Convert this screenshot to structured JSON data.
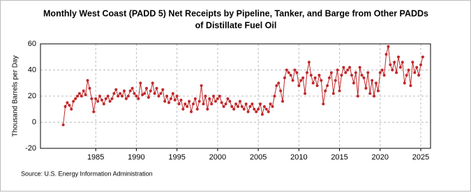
{
  "chart_data": {
    "type": "line",
    "title": [
      "Monthly West Coast (PADD 5) Net Receipts by Pipeline, Tanker, and Barge from Other PADDs",
      "of Distillate Fuel Oil"
    ],
    "y_label": "Thousand Barrels per Day",
    "source": "Source: U.S. Energy Information Administration",
    "xlim": [
      1978.2,
      2026.2
    ],
    "xticks": [
      1985,
      1990,
      1995,
      2000,
      2005,
      2010,
      2015,
      2020,
      2025
    ],
    "ylim": [
      -20,
      60
    ],
    "yticks": [
      -20,
      0,
      20,
      40,
      60
    ],
    "grid": true,
    "x": [
      1981,
      1981.25,
      1981.5,
      1981.75,
      1982,
      1982.25,
      1982.5,
      1982.75,
      1983,
      1983.25,
      1983.5,
      1983.75,
      1984,
      1984.25,
      1984.5,
      1984.75,
      1985,
      1985.25,
      1985.5,
      1985.75,
      1986,
      1986.25,
      1986.5,
      1986.75,
      1987,
      1987.25,
      1987.5,
      1987.75,
      1988,
      1988.25,
      1988.5,
      1988.75,
      1989,
      1989.25,
      1989.5,
      1989.75,
      1990,
      1990.25,
      1990.5,
      1990.75,
      1991,
      1991.25,
      1991.5,
      1991.75,
      1992,
      1992.25,
      1992.5,
      1992.75,
      1993,
      1993.25,
      1993.5,
      1993.75,
      1994,
      1994.25,
      1994.5,
      1994.75,
      1995,
      1995.25,
      1995.5,
      1995.75,
      1996,
      1996.25,
      1996.5,
      1996.75,
      1997,
      1997.25,
      1997.5,
      1997.75,
      1998,
      1998.25,
      1998.5,
      1998.75,
      1999,
      1999.25,
      1999.5,
      1999.75,
      2000,
      2000.25,
      2000.5,
      2000.75,
      2001,
      2001.25,
      2001.5,
      2001.75,
      2002,
      2002.25,
      2002.5,
      2002.75,
      2003,
      2003.25,
      2003.5,
      2003.75,
      2004,
      2004.25,
      2004.5,
      2004.75,
      2005,
      2005.25,
      2005.5,
      2005.75,
      2006,
      2006.25,
      2006.5,
      2006.75,
      2007,
      2007.25,
      2007.5,
      2007.75,
      2008,
      2008.25,
      2008.5,
      2008.75,
      2009,
      2009.25,
      2009.5,
      2009.75,
      2010,
      2010.25,
      2010.5,
      2010.75,
      2011,
      2011.25,
      2011.5,
      2011.75,
      2012,
      2012.25,
      2012.5,
      2012.75,
      2013,
      2013.25,
      2013.5,
      2013.75,
      2014,
      2014.25,
      2014.5,
      2014.75,
      2015,
      2015.25,
      2015.5,
      2015.75,
      2016,
      2016.25,
      2016.5,
      2016.75,
      2017,
      2017.25,
      2017.5,
      2017.75,
      2018,
      2018.25,
      2018.5,
      2018.75,
      2019,
      2019.25,
      2019.5,
      2019.75,
      2020,
      2020.25,
      2020.5,
      2020.75,
      2021,
      2021.25,
      2021.5,
      2021.75,
      2022,
      2022.25,
      2022.5,
      2022.75,
      2023,
      2023.25,
      2023.5,
      2023.75,
      2024,
      2024.25,
      2024.5,
      2024.75,
      2025,
      2025.25
    ],
    "series": [
      {
        "color": "#c0282a",
        "values": [
          -2,
          12,
          15,
          13,
          10,
          16,
          18,
          20,
          22,
          20,
          24,
          21,
          32,
          26,
          18,
          8,
          18,
          16,
          20,
          17,
          14,
          18,
          20,
          16,
          18,
          22,
          25,
          20,
          22,
          20,
          24,
          18,
          20,
          24,
          26,
          22,
          20,
          18,
          30,
          21,
          22,
          26,
          19,
          24,
          30,
          22,
          26,
          20,
          22,
          25,
          16,
          20,
          15,
          18,
          22,
          17,
          20,
          14,
          17,
          10,
          14,
          12,
          16,
          8,
          14,
          18,
          10,
          16,
          28,
          14,
          20,
          10,
          18,
          14,
          20,
          16,
          18,
          20,
          15,
          12,
          14,
          18,
          16,
          12,
          10,
          14,
          12,
          16,
          12,
          10,
          14,
          8,
          12,
          14,
          10,
          8,
          10,
          14,
          6,
          12,
          10,
          8,
          14,
          12,
          20,
          28,
          30,
          24,
          16,
          34,
          40,
          38,
          36,
          32,
          40,
          38,
          28,
          32,
          34,
          22,
          38,
          46,
          36,
          30,
          34,
          28,
          36,
          32,
          14,
          24,
          28,
          34,
          38,
          22,
          32,
          40,
          24,
          36,
          42,
          38,
          40,
          42,
          36,
          30,
          38,
          20,
          42,
          36,
          34,
          26,
          38,
          22,
          32,
          20,
          30,
          24,
          38,
          40,
          36,
          52,
          58,
          44,
          40,
          46,
          38,
          50,
          42,
          46,
          30,
          36,
          40,
          28,
          46,
          38,
          42,
          36,
          44,
          50
        ]
      }
    ]
  }
}
